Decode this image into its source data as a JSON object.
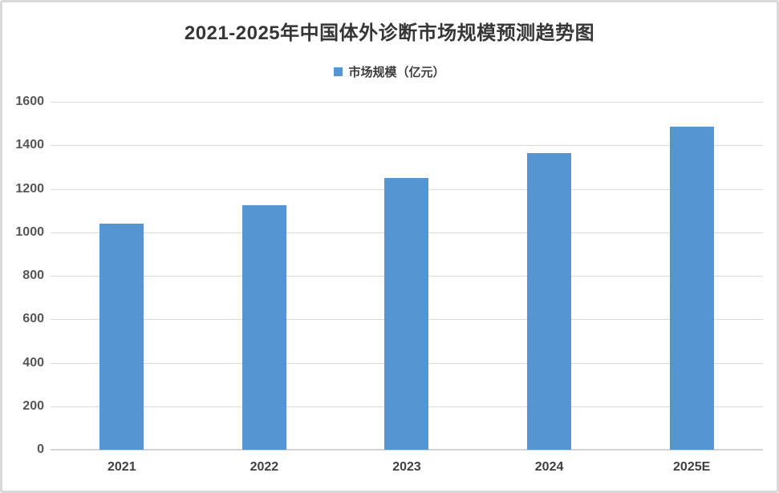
{
  "page": {
    "background": "#ffffff",
    "frame_border_color": "#d9d9d9"
  },
  "colors": {
    "bar_fill": "#5596d2",
    "gridline": "#d9d9d9",
    "axis_line": "#d2d2d2",
    "title_text": "#363636",
    "tick_text": "#565656"
  },
  "chart_data": {
    "type": "bar",
    "title": "2021-2025年中国体外诊断市场规模预测趋势图",
    "legend": {
      "position": "top-center",
      "entries": [
        {
          "label": "市场规模（亿元）",
          "color": "#5596d2"
        }
      ]
    },
    "categories": [
      "2021",
      "2022",
      "2023",
      "2024",
      "2025E"
    ],
    "series": [
      {
        "name": "市场规模（亿元）",
        "color": "#5596d2",
        "values": [
          1040,
          1125,
          1250,
          1365,
          1485
        ]
      }
    ],
    "xlabel": "",
    "ylabel": "",
    "ylim": [
      0,
      1600
    ],
    "yticks": [
      0,
      200,
      400,
      600,
      800,
      1000,
      1200,
      1400,
      1600
    ],
    "grid": "horizontal"
  }
}
